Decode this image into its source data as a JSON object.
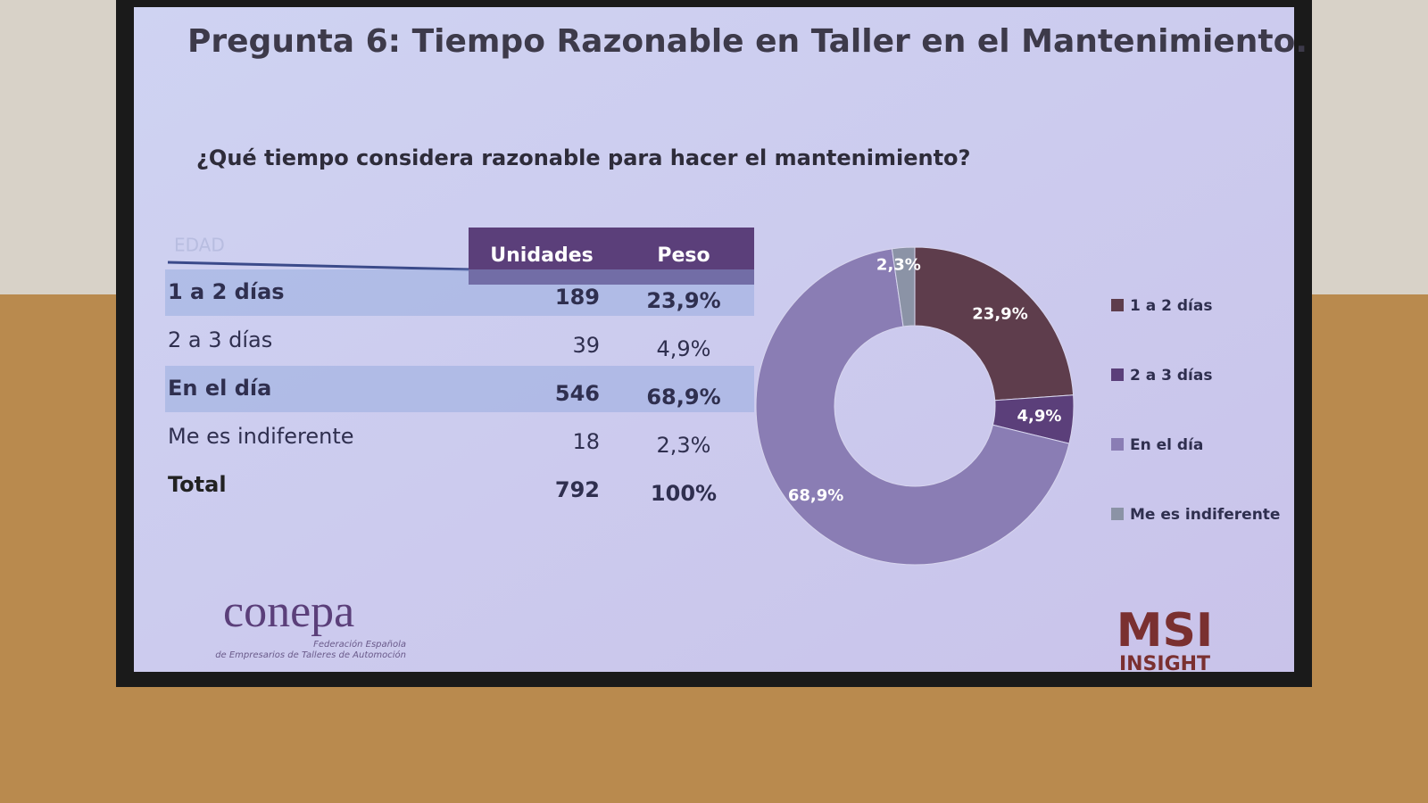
{
  "title": "Pregunta 6: Tiempo Razonable en Taller en el Mantenimiento.",
  "subtitle": "¿Qué tiempo considera razonable para hacer el mantenimiento?",
  "table": {
    "corner": "EDAD",
    "columns": [
      "Unidades",
      "Peso"
    ],
    "rows": [
      [
        "1 a 2 días",
        "189",
        "23,9%"
      ],
      [
        "2 a 3 días",
        "39",
        "4,9%"
      ],
      [
        "En el día",
        "546",
        "68,9%"
      ],
      [
        "Me es indiferente",
        "18",
        "2,3%"
      ],
      [
        "Total",
        "792",
        "100%"
      ]
    ]
  },
  "chart_data": {
    "type": "pie",
    "categories": [
      "1 a 2 días",
      "2 a 3 días",
      "En el día",
      "Me es indiferente"
    ],
    "values": [
      23.9,
      4.9,
      68.9,
      2.3
    ],
    "value_labels": [
      "23,9%",
      "4,9%",
      "68,9%",
      "2,3%"
    ],
    "colors": [
      "#5e3d4c",
      "#5b3f7a",
      "#8a7db4",
      "#8b93a6"
    ]
  },
  "logos": {
    "left": {
      "name": "conepa",
      "tagline": [
        "Federación Española",
        "de Empresarios de Talleres de Automoción"
      ]
    },
    "right": {
      "name": "MSI",
      "sub": "INSIGHT"
    }
  }
}
